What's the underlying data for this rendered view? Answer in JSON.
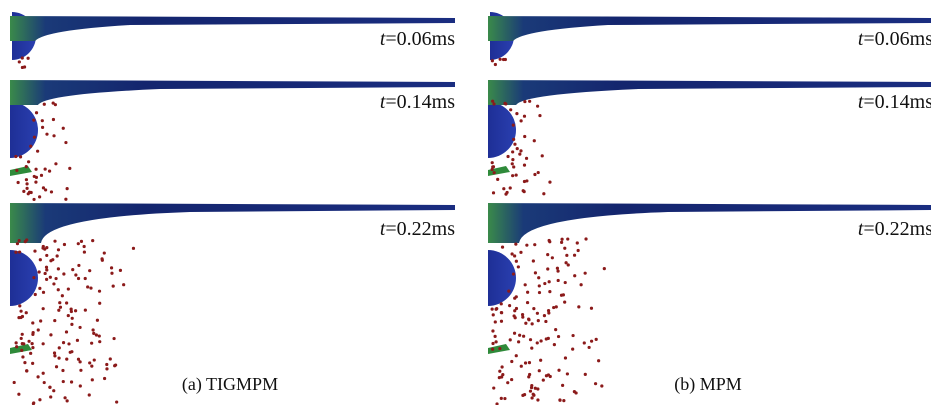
{
  "panels": [
    {
      "caption": "(a)  TIGMPM",
      "frames": [
        {
          "symbol": "t",
          "time": "=0.06ms"
        },
        {
          "symbol": "t",
          "time": "=0.14ms"
        },
        {
          "symbol": "t",
          "time": "=0.22ms"
        }
      ]
    },
    {
      "caption": "(b)  MPM",
      "frames": [
        {
          "symbol": "t",
          "time": "=0.06ms"
        },
        {
          "symbol": "t",
          "time": "=0.14ms"
        },
        {
          "symbol": "t",
          "time": "=0.22ms"
        }
      ]
    }
  ]
}
